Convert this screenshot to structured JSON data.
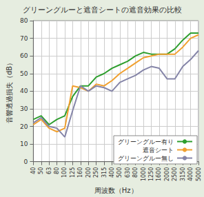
{
  "chart_data": {
    "type": "line",
    "title": "グリーングルーと遮音シートの遮音効果の比較",
    "x_label": "周波数（Hz）",
    "y_label": "音響透過損失（dB）",
    "categories": [
      "40",
      "50",
      "63",
      "80",
      "100",
      "125",
      "160",
      "200",
      "250",
      "315",
      "400",
      "500",
      "630",
      "800",
      "1000",
      "1250",
      "1600",
      "2000",
      "2500",
      "3150",
      "4000",
      "5000"
    ],
    "series": [
      {
        "name": "グリーングルー有り",
        "color": "#2e9e2e",
        "values": [
          24,
          26,
          21,
          24,
          26,
          37,
          43,
          43,
          48,
          50,
          53,
          55,
          57,
          60,
          62,
          61,
          61,
          61,
          64,
          69,
          73,
          73
        ]
      },
      {
        "name": "遮音シート",
        "color": "#f0a030",
        "values": [
          21,
          24,
          19,
          17,
          19,
          43,
          42,
          40,
          44,
          43,
          46,
          50,
          53,
          56,
          59,
          60,
          61,
          61,
          61,
          65,
          70,
          72
        ]
      },
      {
        "name": "グリーングルー無し",
        "color": "#8585a8",
        "values": [
          22,
          25,
          20,
          19,
          14,
          29,
          43,
          40,
          43,
          42,
          40,
          45,
          47,
          49,
          52,
          54,
          53,
          47,
          47,
          54,
          58,
          63
        ]
      }
    ],
    "ylim": [
      0,
      80
    ],
    "yticks": [
      0,
      10,
      20,
      30,
      40,
      50,
      60,
      70,
      80
    ],
    "grid": true,
    "legend": "lower right"
  }
}
